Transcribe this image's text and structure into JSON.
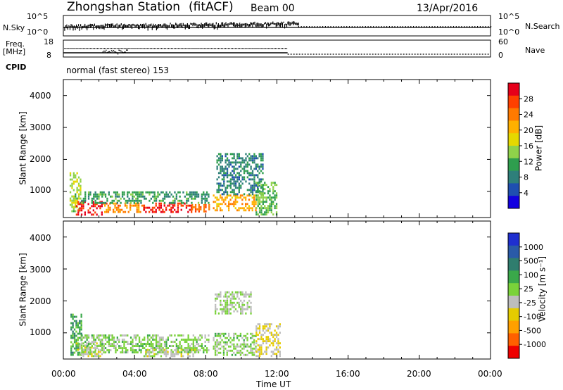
{
  "header": {
    "station": "Zhongshan Station",
    "mode": "(fitACF)",
    "beam": "Beam 00",
    "date": "13/Apr/2016"
  },
  "top_panel": {
    "left_label": "N.Sky",
    "right_label": "N.Search",
    "left_ticks": [
      "10^5",
      "10^0"
    ],
    "right_ticks": [
      "10^5",
      "10^0"
    ],
    "freq_label_1": "Freq.",
    "freq_label_2": "[MHz]",
    "freq_ticks": [
      "18",
      "8"
    ],
    "nave_label": "Nave",
    "nave_ticks": [
      "60",
      "0"
    ],
    "cpid_label": "CPID",
    "cpid_text": "normal (fast stereo) 153"
  },
  "axes": {
    "ylabel": "Slant Range [km]",
    "xlabel": "Time UT",
    "xticks": [
      "00:00",
      "04:00",
      "08:00",
      "12:00",
      "16:00",
      "20:00",
      "00:00"
    ],
    "yticks": [
      "1000",
      "2000",
      "3000",
      "4000"
    ]
  },
  "power_colorbar": {
    "label": "Power [dB]",
    "ticks": [
      "28",
      "24",
      "20",
      "16",
      "12",
      "8",
      "4"
    ],
    "colors": [
      "#e6001a",
      "#ff4000",
      "#ff7a00",
      "#ffb000",
      "#e5d800",
      "#8fd24a",
      "#2f9e4e",
      "#2e7f7a",
      "#1f4fb0",
      "#1200e0"
    ]
  },
  "velocity_colorbar": {
    "label": "Velocity [m s⁻¹]",
    "ticks": [
      "1000",
      "500",
      "100",
      "25",
      "-25",
      "-100",
      "-500",
      "-1000"
    ],
    "colors": [
      "#1f2fd0",
      "#2a5aa8",
      "#2f7d6e",
      "#3aa84a",
      "#7ad23a",
      "#bdbdbd",
      "#e5cc00",
      "#ffa000",
      "#ff6000",
      "#ee0000"
    ]
  },
  "chart_data": {
    "type": "heatmap",
    "title": "Zhongshan Station (fitACF) Beam 00 13/Apr/2016",
    "xlabel": "Time UT",
    "ylabel": "Slant Range [km]",
    "xlim_hours": [
      0,
      24
    ],
    "ylim_km": [
      180,
      4500
    ],
    "grid": false,
    "panels": [
      {
        "name": "Power",
        "unit": "dB",
        "range": [
          0,
          30
        ],
        "echo_regions": [
          {
            "t": [
              0.35,
              1.0
            ],
            "r": [
              400,
              1600
            ],
            "value": 14
          },
          {
            "t": [
              0.7,
              2.2
            ],
            "r": [
              300,
              700
            ],
            "value": 28
          },
          {
            "t": [
              2.2,
              4.5
            ],
            "r": [
              350,
              650
            ],
            "value": 22
          },
          {
            "t": [
              4.5,
              7.2
            ],
            "r": [
              350,
              650
            ],
            "value": 27
          },
          {
            "t": [
              7.2,
              8.2
            ],
            "r": [
              350,
              600
            ],
            "value": 24
          },
          {
            "t": [
              1.0,
              8.2
            ],
            "r": [
              650,
              1000
            ],
            "value": 10
          },
          {
            "t": [
              8.4,
              10.8
            ],
            "r": [
              400,
              900
            ],
            "value": 20
          },
          {
            "t": [
              8.6,
              11.2
            ],
            "r": [
              900,
              2200
            ],
            "value": 8
          },
          {
            "t": [
              10.8,
              12.0
            ],
            "r": [
              300,
              1300
            ],
            "value": 12
          }
        ]
      },
      {
        "name": "Velocity",
        "unit": "m s-1",
        "range": [
          -1000,
          1000
        ],
        "echo_regions": [
          {
            "t": [
              0.4,
              1.0
            ],
            "r": [
              300,
              1600
            ],
            "value": 300
          },
          {
            "t": [
              0.7,
              2.2
            ],
            "r": [
              250,
              700
            ],
            "value": -100
          },
          {
            "t": [
              1.0,
              8.2
            ],
            "r": [
              400,
              950
            ],
            "value": 60
          },
          {
            "t": [
              4.5,
              7.5
            ],
            "r": [
              250,
              500
            ],
            "value": -100
          },
          {
            "t": [
              8.5,
              10.5
            ],
            "r": [
              1600,
              2300
            ],
            "value": 0
          },
          {
            "t": [
              8.4,
              10.8
            ],
            "r": [
              300,
              1000
            ],
            "value": 60
          },
          {
            "t": [
              10.8,
              12.2
            ],
            "r": [
              300,
              1300
            ],
            "value": -200
          }
        ]
      }
    ],
    "n_sky_search": {
      "t_end_hours": 24,
      "level_log10": 2.5
    },
    "freq_mhz": {
      "low_band": 10.5,
      "high_band": 13.0
    },
    "nave": {
      "t": [
        0,
        12.6
      ],
      "value": 20,
      "t_after": [
        12.6,
        24
      ],
      "value_after": 4
    }
  }
}
